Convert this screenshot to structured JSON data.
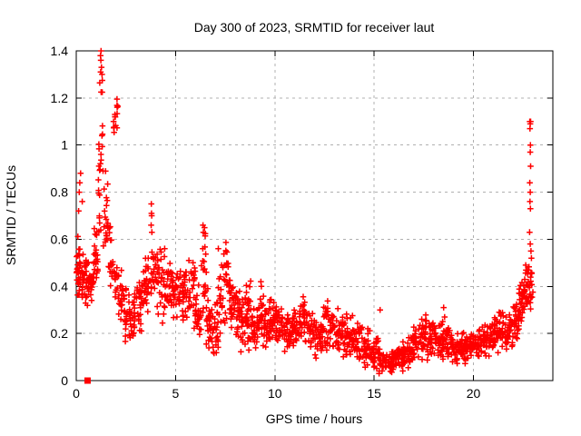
{
  "chart_data": {
    "type": "scatter",
    "title": "Day 300 of 2023, SRMTID for receiver laut",
    "xlabel": "GPS time / hours",
    "ylabel": "SRMTID / TECUs",
    "xlim": [
      0,
      24
    ],
    "ylim": [
      0,
      1.4
    ],
    "xticks": [
      0,
      5,
      10,
      15,
      20
    ],
    "xtick_labels": [
      "0",
      "5",
      "10",
      "15",
      "20"
    ],
    "yticks": [
      0,
      0.2,
      0.4,
      0.6,
      0.8,
      1.0,
      1.2,
      1.4
    ],
    "ytick_labels": [
      "0",
      "0.2",
      "0.4",
      "0.6",
      "0.8",
      "1",
      "1.2",
      "1.4"
    ],
    "grid": true,
    "legend": "none",
    "marker": "plus",
    "marker_color": "#ff0000",
    "grid_color": "#b0b0b0",
    "border_color": "#000000",
    "background_color": "#ffffff",
    "series_bins_format": [
      "x_start_hours",
      "x_end_hours",
      "y_min_TECUs",
      "y_max_TECUs",
      "approx_point_count"
    ],
    "bins": [
      [
        0.0,
        0.3,
        0.32,
        0.62,
        34
      ],
      [
        0.3,
        0.6,
        0.3,
        0.56,
        32
      ],
      [
        0.6,
        0.9,
        0.33,
        0.58,
        30
      ],
      [
        0.9,
        1.1,
        0.38,
        0.68,
        20
      ],
      [
        1.1,
        1.35,
        0.5,
        1.36,
        26
      ],
      [
        1.35,
        1.6,
        0.42,
        0.92,
        20
      ],
      [
        1.6,
        1.85,
        0.34,
        0.72,
        16
      ],
      [
        1.85,
        2.1,
        1.0,
        1.26,
        14
      ],
      [
        1.85,
        2.1,
        0.3,
        0.6,
        12
      ],
      [
        2.1,
        2.4,
        0.24,
        0.52,
        22
      ],
      [
        2.4,
        2.7,
        0.15,
        0.42,
        24
      ],
      [
        2.7,
        3.0,
        0.14,
        0.38,
        26
      ],
      [
        3.0,
        3.3,
        0.18,
        0.44,
        24
      ],
      [
        3.3,
        3.6,
        0.24,
        0.55,
        22
      ],
      [
        3.6,
        3.9,
        0.28,
        0.6,
        20
      ],
      [
        3.9,
        4.2,
        0.24,
        0.55,
        22
      ],
      [
        4.2,
        4.5,
        0.22,
        0.6,
        22
      ],
      [
        4.5,
        4.8,
        0.28,
        0.55,
        22
      ],
      [
        4.8,
        5.1,
        0.26,
        0.52,
        22
      ],
      [
        5.1,
        5.4,
        0.2,
        0.48,
        24
      ],
      [
        5.4,
        5.7,
        0.22,
        0.55,
        22
      ],
      [
        5.7,
        6.0,
        0.18,
        0.6,
        22
      ],
      [
        6.0,
        6.3,
        0.15,
        0.45,
        24
      ],
      [
        6.3,
        6.55,
        0.22,
        0.7,
        20
      ],
      [
        6.55,
        6.85,
        0.12,
        0.4,
        26
      ],
      [
        6.85,
        7.15,
        0.1,
        0.36,
        26
      ],
      [
        7.15,
        7.45,
        0.18,
        0.58,
        22
      ],
      [
        7.45,
        7.7,
        0.22,
        0.62,
        20
      ],
      [
        7.7,
        7.95,
        0.18,
        0.5,
        22
      ],
      [
        7.95,
        8.25,
        0.14,
        0.45,
        26
      ],
      [
        8.25,
        8.55,
        0.1,
        0.38,
        26
      ],
      [
        8.55,
        8.85,
        0.12,
        0.45,
        26
      ],
      [
        8.85,
        9.15,
        0.1,
        0.34,
        28
      ],
      [
        9.15,
        9.45,
        0.14,
        0.42,
        26
      ],
      [
        9.45,
        9.75,
        0.12,
        0.35,
        28
      ],
      [
        9.75,
        10.05,
        0.15,
        0.36,
        28
      ],
      [
        10.05,
        10.45,
        0.14,
        0.33,
        30
      ],
      [
        10.45,
        10.85,
        0.1,
        0.28,
        30
      ],
      [
        10.85,
        11.25,
        0.13,
        0.35,
        30
      ],
      [
        11.25,
        11.65,
        0.14,
        0.38,
        30
      ],
      [
        11.65,
        12.05,
        0.1,
        0.3,
        30
      ],
      [
        12.05,
        12.45,
        0.08,
        0.28,
        30
      ],
      [
        12.45,
        12.85,
        0.1,
        0.35,
        30
      ],
      [
        12.85,
        13.25,
        0.1,
        0.34,
        30
      ],
      [
        13.25,
        13.65,
        0.08,
        0.3,
        30
      ],
      [
        13.65,
        14.05,
        0.08,
        0.28,
        30
      ],
      [
        14.05,
        14.45,
        0.06,
        0.26,
        30
      ],
      [
        14.45,
        14.85,
        0.05,
        0.24,
        30
      ],
      [
        14.85,
        15.25,
        0.04,
        0.2,
        30
      ],
      [
        15.25,
        15.65,
        0.02,
        0.16,
        30
      ],
      [
        15.65,
        16.05,
        0.02,
        0.14,
        30
      ],
      [
        16.05,
        16.45,
        0.03,
        0.17,
        30
      ],
      [
        16.45,
        16.85,
        0.04,
        0.2,
        30
      ],
      [
        16.85,
        17.25,
        0.06,
        0.24,
        30
      ],
      [
        17.25,
        17.65,
        0.08,
        0.28,
        30
      ],
      [
        17.65,
        18.05,
        0.08,
        0.28,
        30
      ],
      [
        18.05,
        18.45,
        0.07,
        0.26,
        30
      ],
      [
        18.45,
        18.85,
        0.08,
        0.24,
        30
      ],
      [
        18.85,
        19.25,
        0.06,
        0.22,
        30
      ],
      [
        19.25,
        19.65,
        0.06,
        0.22,
        30
      ],
      [
        19.65,
        20.05,
        0.08,
        0.24,
        30
      ],
      [
        20.05,
        20.45,
        0.09,
        0.24,
        30
      ],
      [
        20.45,
        20.85,
        0.1,
        0.26,
        30
      ],
      [
        20.85,
        21.25,
        0.1,
        0.28,
        30
      ],
      [
        21.25,
        21.65,
        0.12,
        0.3,
        30
      ],
      [
        21.65,
        22.0,
        0.13,
        0.3,
        28
      ],
      [
        22.0,
        22.3,
        0.15,
        0.35,
        26
      ],
      [
        22.3,
        22.55,
        0.2,
        0.45,
        26
      ],
      [
        22.55,
        22.8,
        0.26,
        0.52,
        26
      ],
      [
        22.8,
        23.0,
        0.3,
        0.5,
        16
      ]
    ],
    "outlier_points": [
      [
        0.12,
        0.72
      ],
      [
        0.15,
        0.8
      ],
      [
        0.18,
        0.84
      ],
      [
        0.22,
        0.88
      ],
      [
        0.3,
        0.76
      ],
      [
        1.22,
        1.38
      ],
      [
        1.25,
        1.4
      ],
      [
        1.24,
        1.36
      ],
      [
        1.27,
        1.33
      ],
      [
        1.23,
        1.31
      ],
      [
        1.3,
        1.3
      ],
      [
        3.78,
        0.75
      ],
      [
        3.79,
        0.71
      ],
      [
        3.8,
        0.7
      ],
      [
        3.77,
        0.66
      ],
      [
        3.81,
        0.63
      ],
      [
        6.38,
        0.66
      ],
      [
        6.4,
        0.63
      ],
      [
        9.3,
        0.42
      ],
      [
        9.32,
        0.4
      ],
      [
        15.3,
        0.3
      ],
      [
        18.5,
        0.31
      ],
      [
        18.55,
        0.27
      ],
      [
        21.3,
        0.29
      ],
      [
        22.84,
        1.1
      ],
      [
        22.88,
        1.1
      ],
      [
        22.86,
        1.09
      ],
      [
        22.85,
        1.07
      ],
      [
        22.87,
        1.0
      ],
      [
        22.86,
        0.97
      ],
      [
        22.88,
        0.91
      ],
      [
        22.84,
        0.84
      ],
      [
        22.86,
        0.8
      ],
      [
        22.85,
        0.76
      ],
      [
        22.87,
        0.73
      ],
      [
        22.83,
        0.63
      ],
      [
        22.86,
        0.58
      ],
      [
        22.9,
        0.55
      ],
      [
        22.92,
        0.52
      ]
    ],
    "special_point": {
      "x": 0.57,
      "y": 0.0,
      "marker": "filled-square",
      "color": "#ff0000"
    }
  }
}
